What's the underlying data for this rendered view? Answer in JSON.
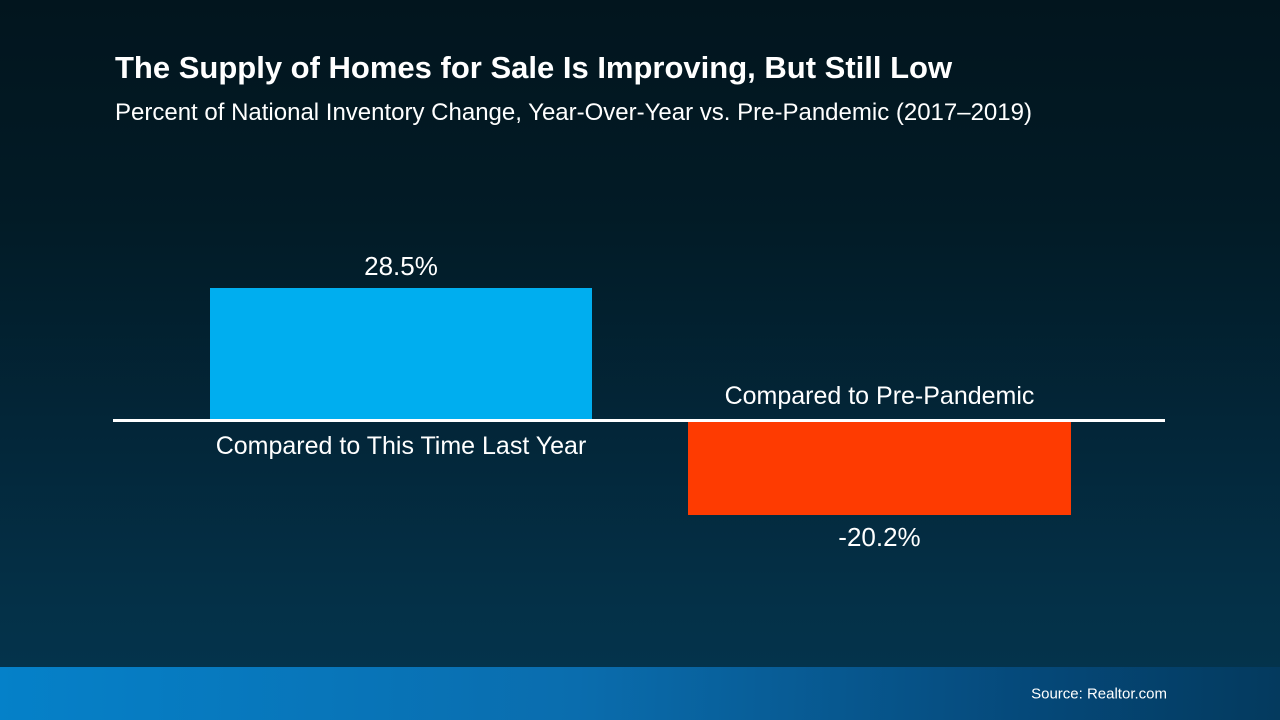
{
  "slide": {
    "title": "The Supply of Homes for Sale Is Improving, But Still Low",
    "subtitle": "Percent of National Inventory Change, Year-Over-Year vs. Pre-Pandemic (2017–2019)",
    "source": "Source: Realtor.com"
  },
  "colors": {
    "positive_bar": "#00AEEF",
    "negative_bar": "#FE3B01",
    "axis_line": "#FFFFFF",
    "text": "#FFFFFF",
    "background_top": "#02151E",
    "background_bottom": "#05354F",
    "footer_gradient_left": "#0581C9",
    "footer_gradient_right": "#043A5E"
  },
  "chart_data": {
    "type": "bar",
    "title": "The Supply of Homes for Sale Is Improving, But Still Low",
    "subtitle": "Percent of National Inventory Change, Year-Over-Year vs. Pre-Pandemic (2017–2019)",
    "categories": [
      "Compared to This Time Last Year",
      "Compared to Pre-Pandemic"
    ],
    "values": [
      28.5,
      -20.2
    ],
    "value_labels": [
      "28.5%",
      "-20.2%"
    ],
    "xlabel": "",
    "ylabel": "",
    "ylim": [
      -25,
      32
    ],
    "baseline": 0,
    "grid": false,
    "legend": false,
    "bar_colors": [
      "#00AEEF",
      "#FE3B01"
    ],
    "source": "Source: Realtor.com"
  }
}
